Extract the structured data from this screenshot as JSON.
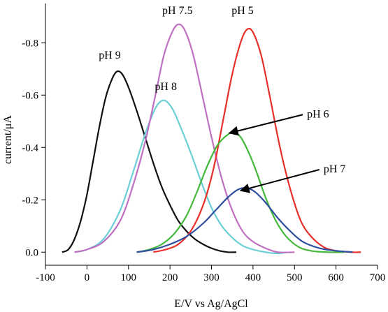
{
  "chart_data": {
    "type": "line",
    "title": "",
    "xlabel": "E/V vs Ag/AgCl",
    "ylabel": "current/μA",
    "xlim": [
      -100,
      700
    ],
    "ylim": [
      0.05,
      -0.95
    ],
    "y_axis_inverted": true,
    "xticks": [
      -100,
      0,
      100,
      200,
      300,
      400,
      500,
      600,
      700
    ],
    "yticks": [
      0.0,
      -0.2,
      -0.4,
      -0.6,
      -0.8
    ],
    "ytick_labels": [
      "0.0",
      "-0.2",
      "-0.4",
      "-0.6",
      "-0.8"
    ],
    "grid": false,
    "legend": "none",
    "series": [
      {
        "name": "pH 9",
        "color": "#111111",
        "points": [
          [
            -60,
            0.0
          ],
          [
            -45,
            -0.01
          ],
          [
            -30,
            -0.05
          ],
          [
            -15,
            -0.12
          ],
          [
            0,
            -0.22
          ],
          [
            15,
            -0.35
          ],
          [
            30,
            -0.48
          ],
          [
            45,
            -0.59
          ],
          [
            60,
            -0.66
          ],
          [
            72,
            -0.69
          ],
          [
            85,
            -0.68
          ],
          [
            100,
            -0.63
          ],
          [
            120,
            -0.54
          ],
          [
            140,
            -0.44
          ],
          [
            160,
            -0.34
          ],
          [
            180,
            -0.25
          ],
          [
            200,
            -0.18
          ],
          [
            220,
            -0.12
          ],
          [
            240,
            -0.08
          ],
          [
            260,
            -0.05
          ],
          [
            280,
            -0.03
          ],
          [
            300,
            -0.015
          ],
          [
            320,
            -0.005
          ],
          [
            340,
            0.0
          ],
          [
            360,
            0.0
          ]
        ]
      },
      {
        "name": "pH 8",
        "color": "#6bcfd6",
        "points": [
          [
            -30,
            0.0
          ],
          [
            0,
            -0.01
          ],
          [
            40,
            -0.05
          ],
          [
            80,
            -0.16
          ],
          [
            110,
            -0.3
          ],
          [
            140,
            -0.45
          ],
          [
            165,
            -0.55
          ],
          [
            185,
            -0.58
          ],
          [
            205,
            -0.55
          ],
          [
            225,
            -0.48
          ],
          [
            250,
            -0.38
          ],
          [
            275,
            -0.27
          ],
          [
            300,
            -0.17
          ],
          [
            325,
            -0.1
          ],
          [
            350,
            -0.055
          ],
          [
            375,
            -0.025
          ],
          [
            400,
            -0.01
          ],
          [
            430,
            0.0
          ],
          [
            460,
            0.005
          ],
          [
            480,
            0.0
          ]
        ]
      },
      {
        "name": "pH 7.5",
        "color": "#c070c0",
        "points": [
          [
            -30,
            0.0
          ],
          [
            0,
            -0.01
          ],
          [
            40,
            -0.04
          ],
          [
            80,
            -0.12
          ],
          [
            110,
            -0.25
          ],
          [
            140,
            -0.42
          ],
          [
            165,
            -0.6
          ],
          [
            185,
            -0.75
          ],
          [
            205,
            -0.84
          ],
          [
            220,
            -0.87
          ],
          [
            235,
            -0.85
          ],
          [
            255,
            -0.76
          ],
          [
            275,
            -0.62
          ],
          [
            300,
            -0.44
          ],
          [
            325,
            -0.28
          ],
          [
            350,
            -0.16
          ],
          [
            375,
            -0.08
          ],
          [
            400,
            -0.04
          ],
          [
            430,
            -0.015
          ],
          [
            460,
            0.0
          ],
          [
            500,
            0.0
          ]
        ]
      },
      {
        "name": "pH 5",
        "color": "#e8302a",
        "points": [
          [
            160,
            0.0
          ],
          [
            190,
            -0.01
          ],
          [
            220,
            -0.03
          ],
          [
            250,
            -0.08
          ],
          [
            280,
            -0.18
          ],
          [
            305,
            -0.32
          ],
          [
            330,
            -0.52
          ],
          [
            350,
            -0.68
          ],
          [
            370,
            -0.8
          ],
          [
            385,
            -0.85
          ],
          [
            400,
            -0.84
          ],
          [
            420,
            -0.75
          ],
          [
            440,
            -0.6
          ],
          [
            465,
            -0.4
          ],
          [
            490,
            -0.24
          ],
          [
            515,
            -0.12
          ],
          [
            540,
            -0.06
          ],
          [
            570,
            -0.02
          ],
          [
            600,
            -0.005
          ],
          [
            640,
            0.0
          ],
          [
            660,
            0.0
          ]
        ]
      },
      {
        "name": "pH 6",
        "color": "#44b83a",
        "points": [
          [
            120,
            0.0
          ],
          [
            150,
            -0.01
          ],
          [
            180,
            -0.03
          ],
          [
            210,
            -0.07
          ],
          [
            240,
            -0.14
          ],
          [
            265,
            -0.23
          ],
          [
            290,
            -0.33
          ],
          [
            315,
            -0.41
          ],
          [
            340,
            -0.45
          ],
          [
            355,
            -0.455
          ],
          [
            370,
            -0.44
          ],
          [
            390,
            -0.38
          ],
          [
            410,
            -0.3
          ],
          [
            430,
            -0.21
          ],
          [
            455,
            -0.12
          ],
          [
            480,
            -0.06
          ],
          [
            510,
            -0.02
          ],
          [
            540,
            -0.005
          ],
          [
            580,
            0.0
          ],
          [
            620,
            0.0
          ]
        ]
      },
      {
        "name": "pH 7",
        "color": "#2f4f9f",
        "points": [
          [
            120,
            0.0
          ],
          [
            160,
            -0.01
          ],
          [
            200,
            -0.03
          ],
          [
            240,
            -0.06
          ],
          [
            280,
            -0.11
          ],
          [
            310,
            -0.16
          ],
          [
            340,
            -0.21
          ],
          [
            365,
            -0.24
          ],
          [
            385,
            -0.245
          ],
          [
            405,
            -0.23
          ],
          [
            430,
            -0.19
          ],
          [
            460,
            -0.13
          ],
          [
            490,
            -0.08
          ],
          [
            520,
            -0.04
          ],
          [
            560,
            -0.015
          ],
          [
            600,
            -0.005
          ],
          [
            640,
            0.0
          ]
        ]
      }
    ],
    "annotations": [
      {
        "text": "pH 9",
        "anchor": [
          55,
          -0.74
        ]
      },
      {
        "text": "pH 7.5",
        "anchor": [
          218,
          -0.91
        ]
      },
      {
        "text": "pH 5",
        "anchor": [
          375,
          -0.91
        ]
      },
      {
        "text": "pH 8",
        "anchor": [
          190,
          -0.62
        ]
      },
      {
        "text": "pH 6",
        "anchor": [
          530,
          -0.52
        ],
        "arrow_to": [
          343,
          -0.455
        ]
      },
      {
        "text": "pH 7",
        "anchor": [
          570,
          -0.31
        ],
        "arrow_to": [
          370,
          -0.235
        ]
      }
    ]
  }
}
